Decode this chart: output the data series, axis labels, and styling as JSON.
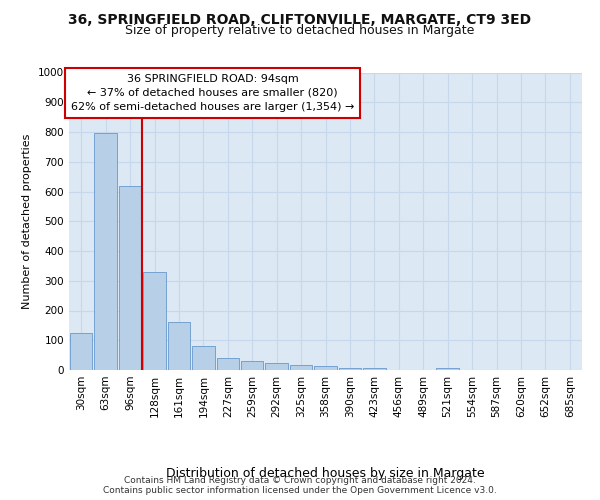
{
  "title1": "36, SPRINGFIELD ROAD, CLIFTONVILLE, MARGATE, CT9 3ED",
  "title2": "Size of property relative to detached houses in Margate",
  "xlabel": "Distribution of detached houses by size in Margate",
  "ylabel": "Number of detached properties",
  "bar_labels": [
    "30sqm",
    "63sqm",
    "96sqm",
    "128sqm",
    "161sqm",
    "194sqm",
    "227sqm",
    "259sqm",
    "292sqm",
    "325sqm",
    "358sqm",
    "390sqm",
    "423sqm",
    "456sqm",
    "489sqm",
    "521sqm",
    "554sqm",
    "587sqm",
    "620sqm",
    "652sqm",
    "685sqm"
  ],
  "bar_values": [
    125,
    795,
    620,
    328,
    162,
    82,
    40,
    30,
    25,
    18,
    12,
    8,
    8,
    0,
    0,
    8,
    0,
    0,
    0,
    0,
    0
  ],
  "bar_color": "#b8cfe8",
  "bar_edge_color": "#6699cc",
  "vline_color": "#cc0000",
  "vline_x": 2.5,
  "annotation_text": "36 SPRINGFIELD ROAD: 94sqm\n← 37% of detached houses are smaller (820)\n62% of semi-detached houses are larger (1,354) →",
  "annotation_box_facecolor": "#ffffff",
  "annotation_box_edgecolor": "#cc0000",
  "footer_text": "Contains HM Land Registry data © Crown copyright and database right 2024.\nContains public sector information licensed under the Open Government Licence v3.0.",
  "ylim": [
    0,
    1000
  ],
  "yticks": [
    0,
    100,
    200,
    300,
    400,
    500,
    600,
    700,
    800,
    900,
    1000
  ],
  "grid_color": "#c8d8ec",
  "bg_color": "#dce8f4",
  "fig_bg_color": "#ffffff",
  "title1_fontsize": 10,
  "title2_fontsize": 9,
  "xlabel_fontsize": 9,
  "ylabel_fontsize": 8,
  "tick_fontsize": 7.5,
  "footer_fontsize": 6.5,
  "ann_fontsize": 8
}
